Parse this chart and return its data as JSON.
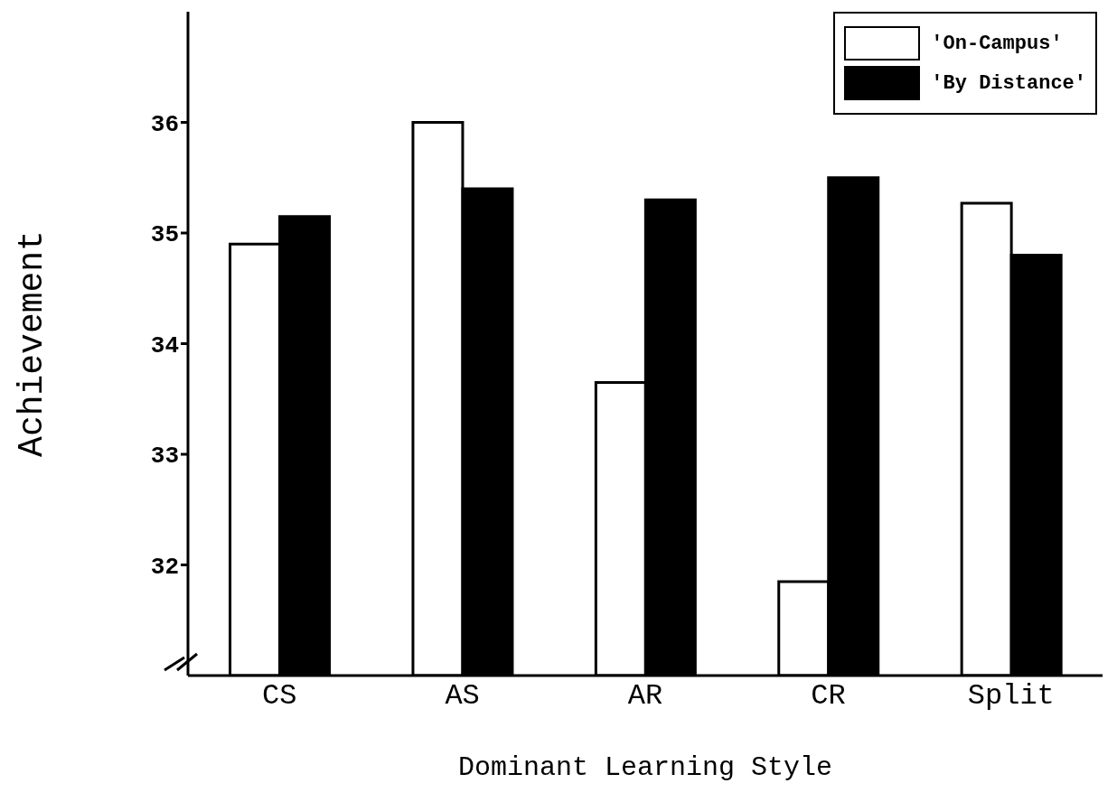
{
  "chart_data": {
    "type": "bar",
    "xlabel": "Dominant Learning Style",
    "ylabel": "Achievement",
    "categories": [
      "CS",
      "AS",
      "AR",
      "CR",
      "Split"
    ],
    "series": [
      {
        "name": "'On-Campus'",
        "color": "#ffffff",
        "values": [
          34.9,
          36.0,
          33.65,
          31.85,
          35.27
        ]
      },
      {
        "name": "'By Distance'",
        "color": "#000000",
        "values": [
          35.15,
          35.4,
          35.3,
          35.5,
          34.8
        ]
      }
    ],
    "ylim": [
      31,
      37
    ],
    "yticks": [
      32,
      33,
      34,
      35,
      36
    ],
    "grid": false,
    "legend": "top right"
  }
}
